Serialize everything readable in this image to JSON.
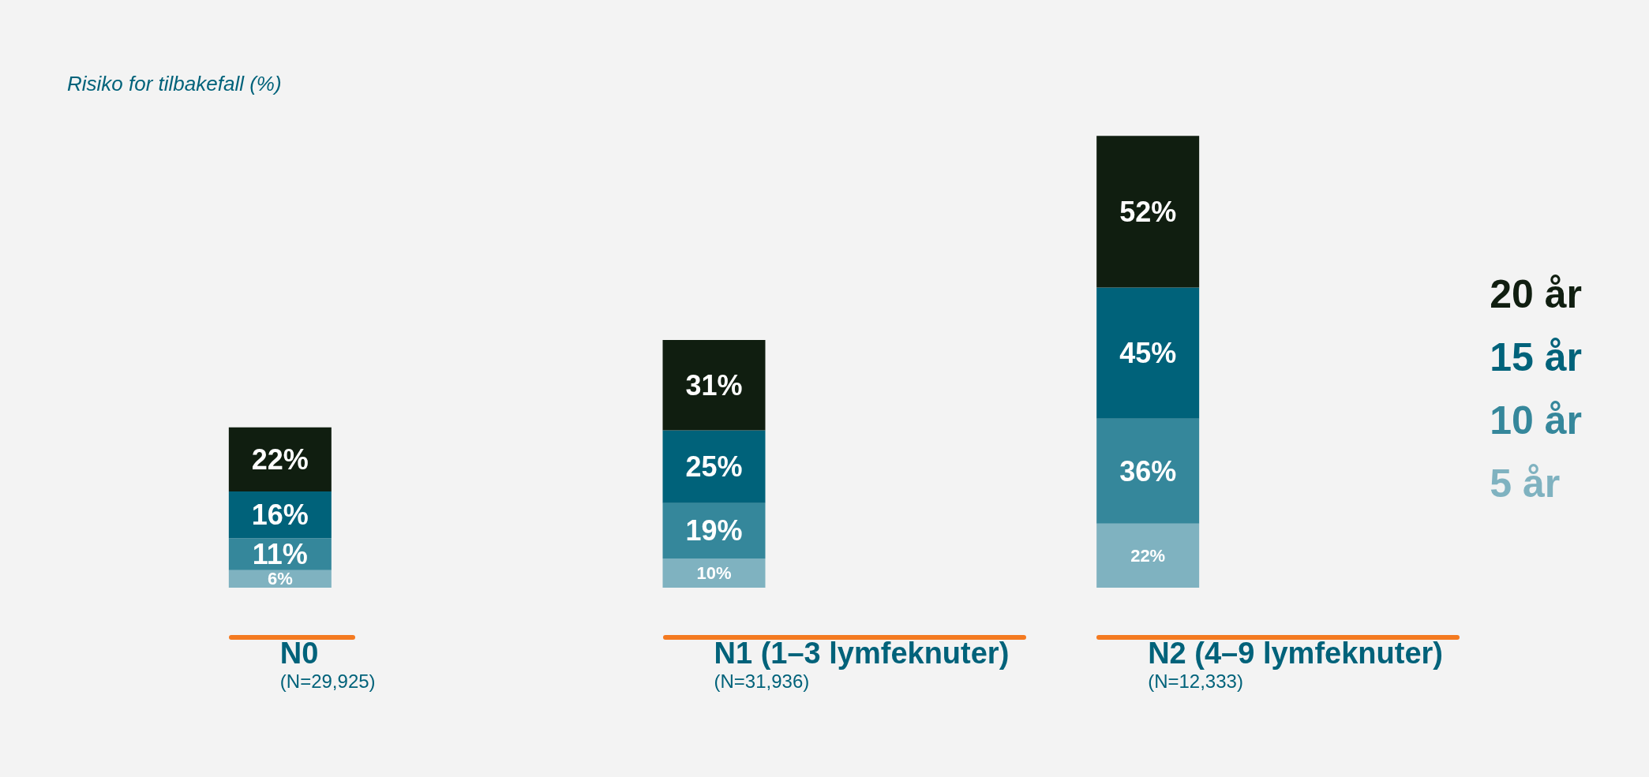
{
  "chart_data": {
    "type": "bar",
    "stacked": true,
    "ylabel": "Risiko for tilbakefall (%)",
    "categories": [
      "N0\n(N=29,925)",
      "N1 (1–3 lymfeknuter)\n(N=31,936)",
      "N2 (4–9 lymfeknuter)\n(N=12,333)"
    ],
    "series": [
      {
        "name": "5 år",
        "color": "#7fb2c0",
        "values": [
          6,
          10,
          22
        ],
        "value_labels": [
          "6%",
          "10%",
          "22%"
        ]
      },
      {
        "name": "10 år",
        "color": "#35879b",
        "values": [
          11,
          19,
          36
        ],
        "value_labels": [
          "11%",
          "19%",
          "36%"
        ]
      },
      {
        "name": "15 år",
        "color": "#00627a",
        "values": [
          16,
          25,
          45
        ],
        "value_labels": [
          "16%",
          "25%",
          "45%"
        ]
      },
      {
        "name": "20 år",
        "color": "#101e10",
        "values": [
          22,
          31,
          52
        ],
        "value_labels": [
          "22%",
          "31%",
          "52%"
        ]
      }
    ],
    "legend": "right"
  }
}
